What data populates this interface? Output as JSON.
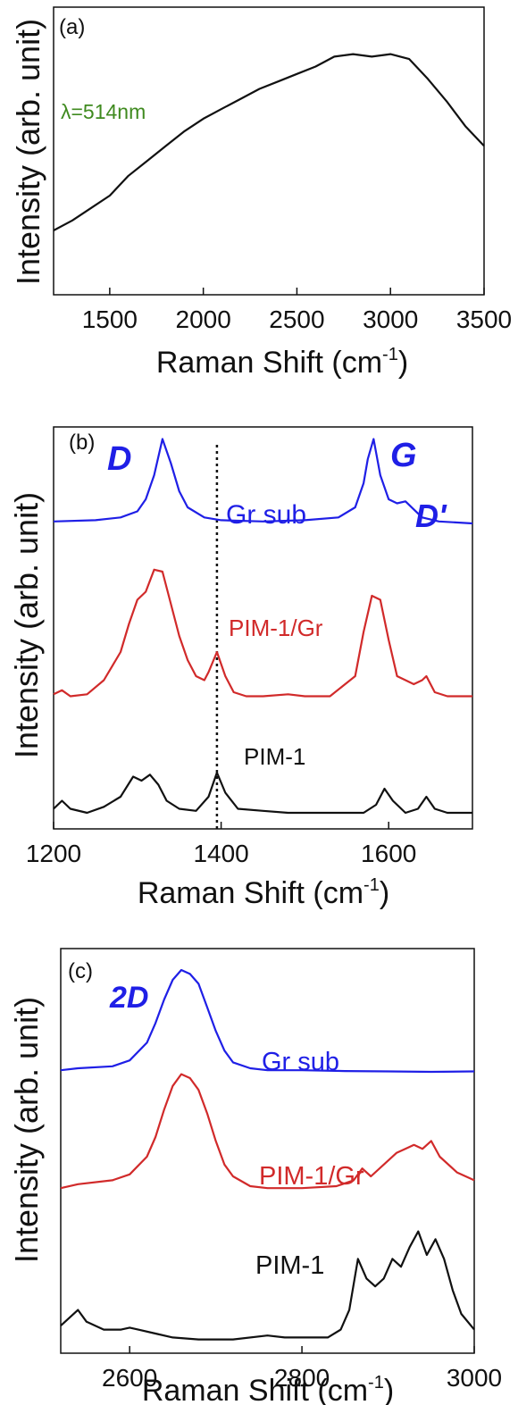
{
  "chart_data": [
    {
      "panel": "(a)",
      "type": "line",
      "xlabel": "Raman Shift (cm",
      "xlabel_sup": "-1",
      "xlabel_close": ")",
      "ylabel": "Intensity (arb. unit)",
      "xlim": [
        1200,
        3500
      ],
      "ylim": [
        0,
        1
      ],
      "x_ticks": [
        1500,
        2000,
        2500,
        3000,
        3500
      ],
      "y_ticks_shown": false,
      "grid": false,
      "annotation": {
        "text": "λ=514nm",
        "color": "#3f8a1f"
      },
      "series": [
        {
          "color": "#111111",
          "x": [
            1200,
            1300,
            1400,
            1500,
            1600,
            1700,
            1800,
            1900,
            2000,
            2100,
            2200,
            2300,
            2400,
            2500,
            2600,
            2700,
            2800,
            2900,
            3000,
            3100,
            3200,
            3300,
            3400,
            3500
          ],
          "y": [
            0.18,
            0.22,
            0.27,
            0.32,
            0.4,
            0.46,
            0.52,
            0.58,
            0.63,
            0.67,
            0.71,
            0.75,
            0.78,
            0.81,
            0.84,
            0.88,
            0.89,
            0.88,
            0.89,
            0.87,
            0.79,
            0.7,
            0.6,
            0.52
          ]
        }
      ]
    },
    {
      "panel": "(b)",
      "type": "line",
      "xlabel": "Raman Shift (cm",
      "xlabel_sup": "-1",
      "xlabel_close": ")",
      "ylabel": "Intensity (arb. unit)",
      "xlim": [
        1200,
        1700
      ],
      "ylim": [
        0,
        1
      ],
      "x_ticks": [
        1200,
        1400,
        1600
      ],
      "y_ticks_shown": false,
      "grid": false,
      "reference_line": {
        "x": 1395,
        "style": "dotted"
      },
      "peak_labels": [
        "D",
        "G",
        "D'"
      ],
      "series": [
        {
          "name": "Gr sub",
          "color": "#1f1fe6",
          "x": [
            1200,
            1250,
            1280,
            1300,
            1310,
            1320,
            1330,
            1340,
            1350,
            1360,
            1380,
            1400,
            1450,
            1500,
            1540,
            1560,
            1570,
            1575,
            1582,
            1590,
            1600,
            1610,
            1620,
            1630,
            1640,
            1660,
            1700
          ],
          "y": [
            0.765,
            0.768,
            0.775,
            0.79,
            0.82,
            0.88,
            0.97,
            0.91,
            0.84,
            0.8,
            0.775,
            0.768,
            0.765,
            0.768,
            0.775,
            0.8,
            0.86,
            0.92,
            0.97,
            0.88,
            0.82,
            0.81,
            0.815,
            0.795,
            0.775,
            0.765,
            0.76
          ]
        },
        {
          "name": "PIM-1/Gr",
          "color": "#d12a2a",
          "x": [
            1200,
            1210,
            1220,
            1240,
            1260,
            1280,
            1290,
            1300,
            1310,
            1320,
            1330,
            1340,
            1350,
            1360,
            1370,
            1380,
            1385,
            1395,
            1405,
            1415,
            1430,
            1450,
            1480,
            1500,
            1530,
            1560,
            1570,
            1580,
            1590,
            1600,
            1610,
            1620,
            1630,
            1640,
            1645,
            1655,
            1670,
            1700
          ],
          "y": [
            0.335,
            0.345,
            0.33,
            0.335,
            0.37,
            0.44,
            0.51,
            0.57,
            0.59,
            0.645,
            0.64,
            0.56,
            0.48,
            0.42,
            0.38,
            0.37,
            0.39,
            0.44,
            0.38,
            0.34,
            0.33,
            0.33,
            0.335,
            0.33,
            0.33,
            0.38,
            0.49,
            0.58,
            0.57,
            0.47,
            0.38,
            0.37,
            0.36,
            0.37,
            0.38,
            0.34,
            0.33,
            0.33
          ]
        },
        {
          "name": "PIM-1",
          "color": "#111111",
          "x": [
            1200,
            1210,
            1220,
            1240,
            1260,
            1280,
            1295,
            1305,
            1315,
            1325,
            1335,
            1350,
            1370,
            1385,
            1395,
            1405,
            1420,
            1450,
            1480,
            1500,
            1540,
            1570,
            1585,
            1595,
            1605,
            1620,
            1635,
            1645,
            1655,
            1670,
            1700
          ],
          "y": [
            0.05,
            0.07,
            0.05,
            0.04,
            0.055,
            0.08,
            0.13,
            0.12,
            0.135,
            0.11,
            0.07,
            0.05,
            0.045,
            0.08,
            0.14,
            0.09,
            0.05,
            0.045,
            0.04,
            0.04,
            0.04,
            0.04,
            0.06,
            0.1,
            0.07,
            0.04,
            0.05,
            0.08,
            0.05,
            0.04,
            0.04
          ]
        }
      ]
    },
    {
      "panel": "(c)",
      "type": "line",
      "xlabel": "Raman Shift (cm",
      "xlabel_sup": "-1",
      "xlabel_close": ")",
      "ylabel": "Intensity (arb. unit)",
      "xlim": [
        2520,
        3000
      ],
      "ylim": [
        0,
        1
      ],
      "x_ticks": [
        2600,
        2800,
        3000
      ],
      "y_ticks_shown": false,
      "grid": false,
      "peak_labels": [
        "2D"
      ],
      "series": [
        {
          "name": "Gr sub",
          "color": "#1f1fe6",
          "x": [
            2520,
            2540,
            2580,
            2600,
            2620,
            2630,
            2640,
            2650,
            2660,
            2670,
            2680,
            2690,
            2700,
            2710,
            2720,
            2740,
            2760,
            2800,
            2850,
            2900,
            2950,
            3000
          ],
          "y": [
            0.72,
            0.725,
            0.73,
            0.745,
            0.79,
            0.84,
            0.9,
            0.95,
            0.975,
            0.965,
            0.94,
            0.88,
            0.82,
            0.77,
            0.74,
            0.725,
            0.72,
            0.72,
            0.718,
            0.717,
            0.716,
            0.717
          ]
        },
        {
          "name": "PIM-1/Gr",
          "color": "#d12a2a",
          "x": [
            2520,
            2540,
            2580,
            2600,
            2620,
            2630,
            2640,
            2650,
            2660,
            2670,
            2680,
            2690,
            2700,
            2710,
            2720,
            2740,
            2760,
            2800,
            2840,
            2860,
            2870,
            2880,
            2900,
            2910,
            2920,
            2930,
            2940,
            2950,
            2960,
            2980,
            3000
          ],
          "y": [
            0.42,
            0.43,
            0.44,
            0.455,
            0.5,
            0.55,
            0.62,
            0.68,
            0.71,
            0.7,
            0.67,
            0.61,
            0.54,
            0.48,
            0.45,
            0.425,
            0.42,
            0.42,
            0.425,
            0.44,
            0.47,
            0.45,
            0.49,
            0.51,
            0.52,
            0.53,
            0.52,
            0.54,
            0.5,
            0.46,
            0.44
          ]
        },
        {
          "name": "PIM-1",
          "color": "#111111",
          "x": [
            2520,
            2530,
            2540,
            2550,
            2570,
            2590,
            2600,
            2610,
            2630,
            2650,
            2680,
            2720,
            2760,
            2780,
            2800,
            2830,
            2845,
            2855,
            2865,
            2875,
            2885,
            2895,
            2905,
            2915,
            2925,
            2935,
            2945,
            2955,
            2965,
            2975,
            2985,
            3000
          ],
          "y": [
            0.07,
            0.09,
            0.11,
            0.08,
            0.06,
            0.06,
            0.065,
            0.06,
            0.05,
            0.04,
            0.035,
            0.035,
            0.045,
            0.04,
            0.04,
            0.04,
            0.06,
            0.11,
            0.24,
            0.19,
            0.17,
            0.19,
            0.24,
            0.22,
            0.27,
            0.31,
            0.25,
            0.29,
            0.24,
            0.16,
            0.1,
            0.06
          ]
        }
      ]
    }
  ]
}
